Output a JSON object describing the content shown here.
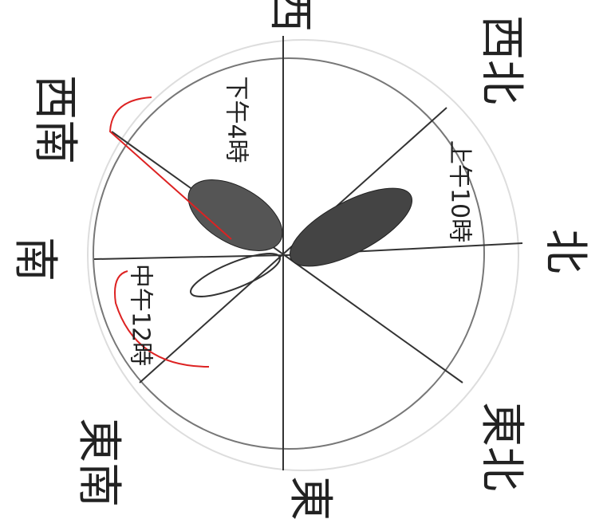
{
  "directions": [
    "西",
    "西北",
    "北",
    "東北",
    "東",
    "東南",
    "南",
    "西南"
  ],
  "annotations": [
    "上午10時",
    "下午4時",
    "中午12時"
  ]
}
